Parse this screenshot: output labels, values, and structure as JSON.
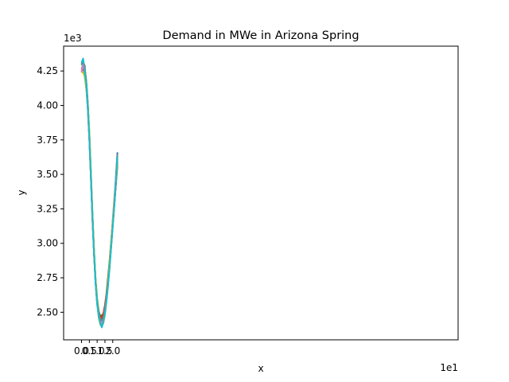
{
  "chart_data": {
    "type": "line",
    "title": "Demand in MWe in Arizona Spring",
    "xlabel": "x",
    "ylabel": "y",
    "x_offset_label": "1e1",
    "y_offset_label": "1e3",
    "xlim": [
      -1.15,
      24.15
    ],
    "ylim": [
      2.3,
      4.43
    ],
    "x_ticks": [
      0,
      0.5,
      1.0,
      1.5,
      2.0
    ],
    "x_tick_labels": [
      "0.0",
      "0.5",
      "1.0",
      "1.5",
      "2.0"
    ],
    "y_ticks": [
      2.5,
      2.75,
      3.0,
      3.25,
      3.5,
      3.75,
      4.0,
      4.25
    ],
    "y_tick_labels": [
      "2.50",
      "2.75",
      "3.00",
      "3.25",
      "3.50",
      "3.75",
      "4.00",
      "4.25"
    ],
    "grid": false,
    "legend": "none",
    "x": [
      0,
      1,
      2,
      3,
      4,
      5,
      6,
      7,
      8,
      9,
      10,
      11,
      12,
      13,
      14,
      15,
      16,
      17,
      18,
      19,
      20,
      21,
      22,
      23
    ],
    "series": [
      {
        "color": "#1f77b4",
        "values": [
          4.3,
          4.33,
          4.27,
          4.17,
          4.0,
          3.77,
          3.49,
          3.19,
          2.93,
          2.72,
          2.58,
          2.49,
          2.44,
          2.43,
          2.46,
          2.51,
          2.6,
          2.71,
          2.84,
          2.99,
          3.15,
          3.3,
          3.48,
          3.66
        ]
      },
      {
        "color": "#ff7f0e",
        "values": [
          4.27,
          4.29,
          4.25,
          4.16,
          4.01,
          3.79,
          3.5,
          3.2,
          2.94,
          2.72,
          2.57,
          2.49,
          2.44,
          2.44,
          2.47,
          2.53,
          2.61,
          2.72,
          2.85,
          2.98,
          3.13,
          3.28,
          3.43,
          3.56
        ]
      },
      {
        "color": "#2ca02c",
        "values": [
          4.29,
          4.31,
          4.26,
          4.18,
          4.02,
          3.8,
          3.51,
          3.21,
          2.95,
          2.74,
          2.6,
          2.51,
          2.47,
          2.48,
          2.49,
          2.55,
          2.64,
          2.76,
          2.88,
          3.02,
          3.16,
          3.3,
          3.45,
          3.61
        ]
      },
      {
        "color": "#d62728",
        "values": [
          4.32,
          4.31,
          4.29,
          4.16,
          3.99,
          3.76,
          3.47,
          3.17,
          2.92,
          2.71,
          2.57,
          2.5,
          2.47,
          2.46,
          2.49,
          2.55,
          2.63,
          2.74,
          2.87,
          3.01,
          3.16,
          3.31,
          3.45,
          3.58
        ]
      },
      {
        "color": "#9467bd",
        "values": [
          4.26,
          4.29,
          4.24,
          4.15,
          3.98,
          3.76,
          3.48,
          3.18,
          2.92,
          2.71,
          2.56,
          2.47,
          2.43,
          2.41,
          2.44,
          2.5,
          2.59,
          2.71,
          2.84,
          2.98,
          3.13,
          3.28,
          3.43,
          3.59
        ]
      },
      {
        "color": "#8c564b",
        "values": [
          4.25,
          4.27,
          4.22,
          4.14,
          3.98,
          3.76,
          3.49,
          3.19,
          2.94,
          2.73,
          2.58,
          2.49,
          2.45,
          2.45,
          2.47,
          2.53,
          2.62,
          2.73,
          2.86,
          2.99,
          3.13,
          3.27,
          3.42,
          3.57
        ]
      },
      {
        "color": "#e377c2",
        "values": [
          4.24,
          4.31,
          4.23,
          4.13,
          3.97,
          3.75,
          3.48,
          3.18,
          2.93,
          2.72,
          2.57,
          2.48,
          2.44,
          2.42,
          2.46,
          2.52,
          2.61,
          2.72,
          2.86,
          3.01,
          3.17,
          3.33,
          3.47,
          3.62
        ]
      },
      {
        "color": "#7f7f7f",
        "values": [
          4.3,
          4.32,
          4.27,
          4.18,
          4.02,
          3.79,
          3.5,
          3.2,
          2.94,
          2.73,
          2.59,
          2.5,
          2.45,
          2.44,
          2.46,
          2.51,
          2.6,
          2.71,
          2.84,
          2.98,
          3.14,
          3.29,
          3.46,
          3.65
        ]
      },
      {
        "color": "#bcbd22",
        "values": [
          4.24,
          4.24,
          4.21,
          4.12,
          4.01,
          3.81,
          3.53,
          3.22,
          2.96,
          2.74,
          2.58,
          2.46,
          2.41,
          2.4,
          2.42,
          2.48,
          2.58,
          2.71,
          2.86,
          3.0,
          3.15,
          3.3,
          3.44,
          3.58
        ]
      },
      {
        "color": "#17becf",
        "values": [
          4.31,
          4.34,
          4.25,
          4.16,
          3.99,
          3.76,
          3.48,
          3.18,
          2.93,
          2.71,
          2.56,
          2.47,
          2.42,
          2.39,
          2.43,
          2.49,
          2.58,
          2.69,
          2.82,
          2.97,
          3.12,
          3.27,
          3.44,
          3.63
        ]
      }
    ]
  }
}
